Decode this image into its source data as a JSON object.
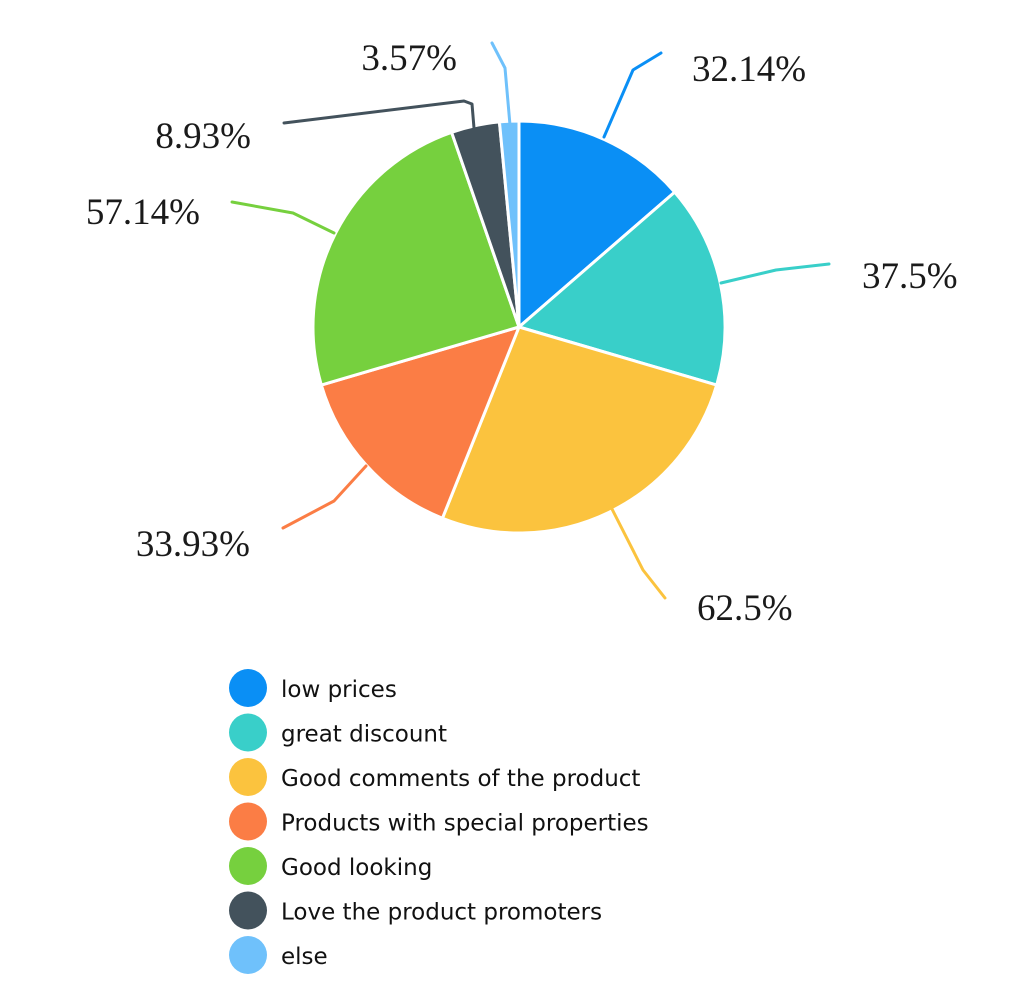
{
  "chart_data": {
    "type": "pie",
    "title": "",
    "categories": [
      "low prices",
      "great discount",
      "Good comments of the product",
      "Products with special properties",
      "Good looking",
      "Love the product promoters",
      "else"
    ],
    "values": [
      32.14,
      37.5,
      62.5,
      33.93,
      57.14,
      8.93,
      3.57
    ],
    "data_labels": [
      "32.14%",
      "37.5%",
      "62.5%",
      "33.93%",
      "57.14%",
      "8.93%",
      "3.57%"
    ],
    "colors": [
      "#0a8ff5",
      "#39cfc9",
      "#fbc33e",
      "#fb7d45",
      "#76d03e",
      "#43525c",
      "#6fc1fb"
    ],
    "legend_position": "bottom",
    "slice_border_color": "#ffffff"
  }
}
